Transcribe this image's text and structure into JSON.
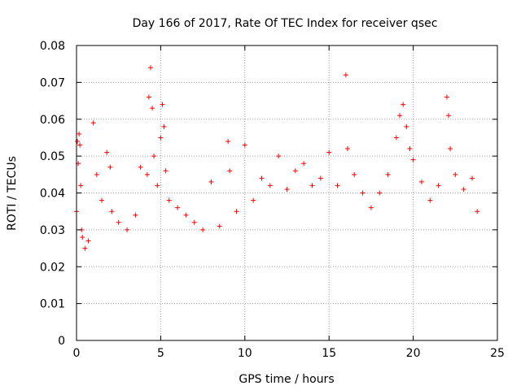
{
  "chart_data": {
    "type": "scatter",
    "title": "Day 166 of 2017, Rate Of TEC Index for receiver qsec",
    "xlabel": "GPS time / hours",
    "ylabel": "ROTI / TECUs",
    "xlim": [
      0,
      25
    ],
    "ylim": [
      0,
      0.08
    ],
    "x_ticks": [
      "0",
      "5",
      "10",
      "15",
      "20",
      "25"
    ],
    "y_ticks": [
      "0",
      "0.01",
      "0.02",
      "0.03",
      "0.04",
      "0.05",
      "0.06",
      "0.07",
      "0.08"
    ],
    "grid": true,
    "marker": "+",
    "color": "#ff0000",
    "series": [
      {
        "name": "ROTI",
        "x": [
          0.0,
          0.05,
          0.1,
          0.15,
          0.2,
          0.25,
          0.3,
          0.35,
          0.5,
          0.7,
          1.0,
          1.2,
          1.5,
          1.8,
          2.0,
          2.1,
          2.5,
          3.0,
          3.5,
          3.8,
          4.2,
          4.3,
          4.4,
          4.5,
          4.6,
          4.8,
          5.0,
          5.1,
          5.2,
          5.3,
          5.5,
          6.0,
          6.5,
          7.0,
          7.5,
          8.0,
          8.5,
          9.0,
          9.1,
          9.5,
          10.0,
          10.5,
          11.0,
          11.5,
          12.0,
          12.5,
          13.0,
          13.5,
          14.0,
          14.5,
          15.0,
          15.5,
          16.0,
          16.1,
          16.5,
          17.0,
          17.5,
          18.0,
          18.5,
          19.0,
          19.2,
          19.4,
          19.6,
          19.8,
          20.0,
          20.5,
          21.0,
          21.5,
          22.0,
          22.1,
          22.2,
          22.5,
          23.0,
          23.5,
          23.8
        ],
        "y": [
          0.035,
          0.054,
          0.048,
          0.056,
          0.053,
          0.042,
          0.03,
          0.028,
          0.025,
          0.027,
          0.059,
          0.045,
          0.038,
          0.051,
          0.047,
          0.035,
          0.032,
          0.03,
          0.034,
          0.047,
          0.045,
          0.066,
          0.074,
          0.063,
          0.05,
          0.042,
          0.055,
          0.064,
          0.058,
          0.046,
          0.038,
          0.036,
          0.034,
          0.032,
          0.03,
          0.043,
          0.031,
          0.054,
          0.046,
          0.035,
          0.053,
          0.038,
          0.044,
          0.042,
          0.05,
          0.041,
          0.046,
          0.048,
          0.042,
          0.044,
          0.051,
          0.042,
          0.072,
          0.052,
          0.045,
          0.04,
          0.036,
          0.04,
          0.045,
          0.055,
          0.061,
          0.064,
          0.058,
          0.052,
          0.049,
          0.043,
          0.038,
          0.042,
          0.066,
          0.061,
          0.052,
          0.045,
          0.041,
          0.044,
          0.035
        ]
      }
    ]
  }
}
